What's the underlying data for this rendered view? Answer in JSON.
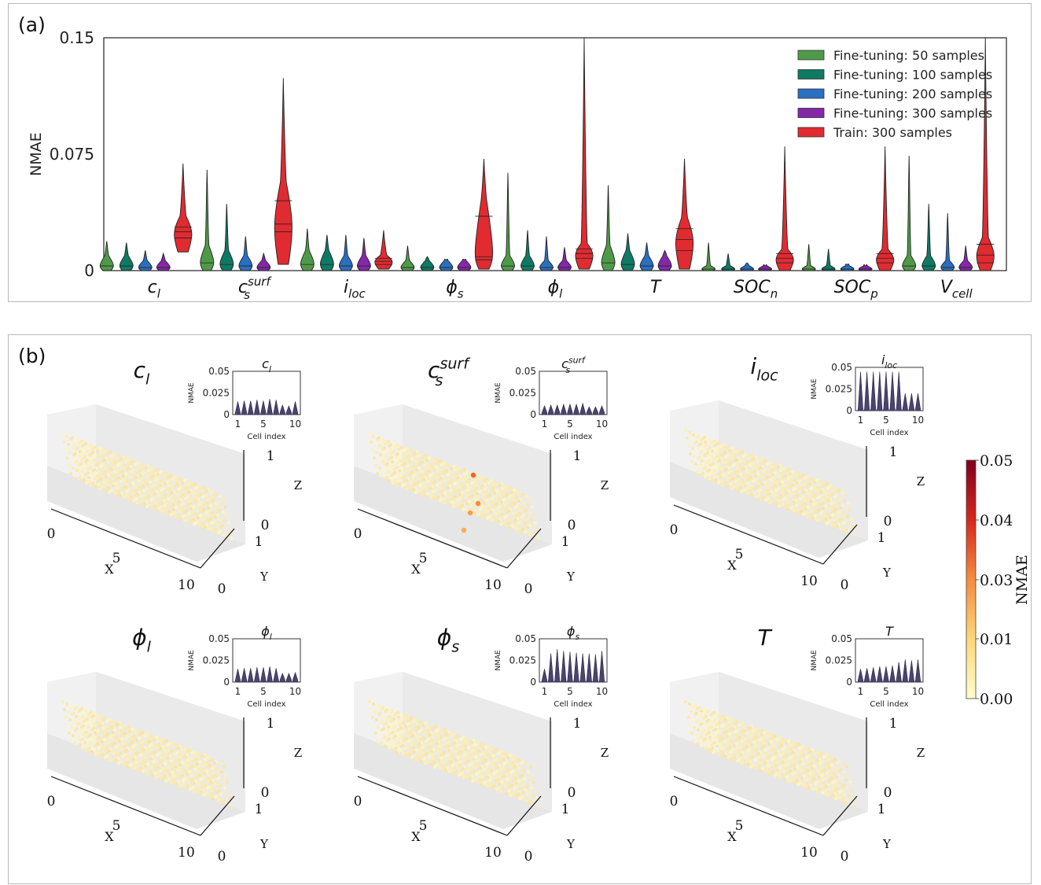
{
  "panel_a_label": "(a)",
  "panel_b_label": "(b)",
  "colors": {
    "Fine-tuning: 50 samples": "#4f9a48",
    "Fine-tuning: 100 samples": "#0f7a63",
    "Fine-tuning: 200 samples": "#2a6fc0",
    "Fine-tuning: 300 samples": "#8428a8",
    "Train: 300 samples": "#e02b31"
  },
  "chart_data": [
    {
      "type": "violin",
      "ylabel": "NMAE",
      "ylim": [
        0,
        0.15
      ],
      "yticks": [
        "0",
        "0.075",
        "0.15"
      ],
      "categories": [
        "c_l",
        "c_s^surf",
        "i_loc",
        "ϕ_s",
        "ϕ_l",
        "T",
        "SOC_n",
        "SOC_p",
        "V_cell"
      ],
      "category_labels": [
        {
          "main": "c",
          "sub": "l",
          "sup": ""
        },
        {
          "main": "c",
          "sub": "s",
          "sup": "surf"
        },
        {
          "main": "i",
          "sub": "loc",
          "sup": ""
        },
        {
          "main": "ϕ",
          "sub": "s",
          "sup": ""
        },
        {
          "main": "ϕ",
          "sub": "l",
          "sup": ""
        },
        {
          "main": "T",
          "sub": "",
          "sup": ""
        },
        {
          "main": "SOC",
          "sub": "n",
          "sup": ""
        },
        {
          "main": "SOC",
          "sub": "p",
          "sup": ""
        },
        {
          "main": "V",
          "sub": "cell",
          "sup": ""
        }
      ],
      "legend_position": "top-right",
      "series": [
        {
          "name": "Fine-tuning: 50 samples",
          "median": [
            0.003,
            0.005,
            0.004,
            0.002,
            0.003,
            0.005,
            0.001,
            0.001,
            0.003
          ],
          "max": [
            0.019,
            0.065,
            0.027,
            0.016,
            0.063,
            0.055,
            0.018,
            0.017,
            0.074
          ]
        },
        {
          "name": "Fine-tuning: 100 samples",
          "median": [
            0.003,
            0.004,
            0.004,
            0.002,
            0.003,
            0.004,
            0.001,
            0.001,
            0.003
          ],
          "max": [
            0.018,
            0.043,
            0.023,
            0.009,
            0.026,
            0.024,
            0.011,
            0.014,
            0.043
          ]
        },
        {
          "name": "Fine-tuning: 200 samples",
          "median": [
            0.002,
            0.003,
            0.003,
            0.002,
            0.002,
            0.003,
            0.001,
            0.001,
            0.002
          ],
          "max": [
            0.013,
            0.022,
            0.023,
            0.007,
            0.022,
            0.018,
            0.005,
            0.004,
            0.037
          ]
        },
        {
          "name": "Fine-tuning: 300 samples",
          "median": [
            0.002,
            0.002,
            0.003,
            0.002,
            0.002,
            0.003,
            0.001,
            0.001,
            0.002
          ],
          "max": [
            0.011,
            0.011,
            0.021,
            0.007,
            0.015,
            0.013,
            0.003,
            0.003,
            0.016
          ]
        },
        {
          "name": "Train: 300 samples",
          "median": [
            0.025,
            0.03,
            0.006,
            0.009,
            0.011,
            0.02,
            0.008,
            0.008,
            0.01
          ],
          "q1": [
            0.021,
            0.025,
            0.004,
            0.007,
            0.008,
            0.013,
            0.005,
            0.005,
            0.005
          ],
          "q3": [
            0.028,
            0.045,
            0.008,
            0.035,
            0.014,
            0.027,
            0.011,
            0.011,
            0.017
          ],
          "min": [
            0.012,
            0.004,
            0.001,
            0.001,
            0.001,
            0.001,
            0.0,
            0.0,
            0.0
          ],
          "max": [
            0.069,
            0.124,
            0.026,
            0.072,
            0.15,
            0.072,
            0.08,
            0.08,
            0.15
          ]
        }
      ]
    },
    {
      "type": "scatter3d-grid",
      "colorbar": {
        "label": "NMAE",
        "min": 0.0,
        "max": 0.05,
        "ticks": [
          "0.00",
          "0.01",
          "0.03",
          "0.04",
          "0.05"
        ]
      },
      "axis_labels": {
        "x": "X",
        "y": "Y",
        "z": "Z"
      },
      "axis_ticks": {
        "x0": "0",
        "x5": "5",
        "x10": "10",
        "y0": "0",
        "y1": "1",
        "z0": "0",
        "z1": "1"
      },
      "inset_xlabel": "Cell index",
      "inset_ylabel": "NMAE",
      "inset_yticks": [
        "0",
        "0.025",
        "0.05"
      ],
      "inset_xticks": [
        "1",
        "5",
        "10"
      ],
      "subplots": [
        {
          "main": "c",
          "sub": "l",
          "sup": "",
          "cell_nmae_max": [
            0.015,
            0.016,
            0.016,
            0.017,
            0.016,
            0.018,
            0.017,
            0.011,
            0.01,
            0.015
          ],
          "hotspots": 0
        },
        {
          "main": "c",
          "sub": "s",
          "sup": "surf",
          "cell_nmae_max": [
            0.01,
            0.011,
            0.011,
            0.012,
            0.012,
            0.012,
            0.013,
            0.009,
            0.009,
            0.01
          ],
          "hotspots": 4
        },
        {
          "main": "i",
          "sub": "loc",
          "sup": "",
          "cell_nmae_max": [
            0.045,
            0.045,
            0.045,
            0.045,
            0.045,
            0.045,
            0.045,
            0.02,
            0.02,
            0.02
          ],
          "hotspots": 0
        },
        {
          "main": "ϕ",
          "sub": "l",
          "sup": "",
          "cell_nmae_max": [
            0.015,
            0.016,
            0.016,
            0.017,
            0.017,
            0.018,
            0.016,
            0.01,
            0.01,
            0.011
          ],
          "hotspots": 0
        },
        {
          "main": "ϕ",
          "sub": "s",
          "sup": "",
          "cell_nmae_max": [
            0.015,
            0.033,
            0.038,
            0.036,
            0.035,
            0.034,
            0.033,
            0.033,
            0.032,
            0.036
          ],
          "hotspots": 0
        },
        {
          "main": "T",
          "sub": "",
          "sup": "",
          "cell_nmae_max": [
            0.015,
            0.016,
            0.017,
            0.018,
            0.018,
            0.019,
            0.023,
            0.026,
            0.025,
            0.026
          ],
          "hotspots": 0
        }
      ]
    }
  ]
}
